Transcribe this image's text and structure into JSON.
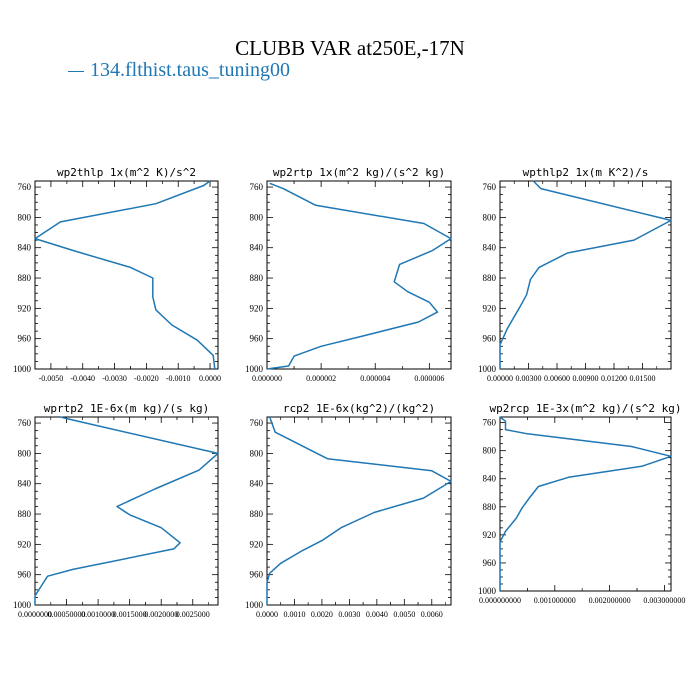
{
  "figure": {
    "title": "CLUBB VAR at250E,-17N",
    "legend": [
      {
        "label": "134.flthist.taus_tuning00",
        "color": "#1f77b4"
      }
    ]
  },
  "chart_data": [
    {
      "type": "line",
      "title": "wp2thlp  1x(m^2 K)/s^2",
      "xlim": [
        -0.0055,
        0.00025
      ],
      "ylim": [
        1000,
        752
      ],
      "yticks": [
        760,
        800,
        840,
        880,
        920,
        960,
        1000
      ],
      "xticks": [
        -0.005,
        -0.004,
        -0.003,
        -0.002,
        -0.001,
        0.0
      ],
      "xtick_labels": [
        "-0.0050",
        "-0.0040",
        "-0.0030",
        "-0.0020",
        "-0.0010",
        "0.0000"
      ],
      "series": [
        {
          "name": "134.flthist.taus_tuning00",
          "color": "#1f77b4",
          "x": [
            0.0,
            -0.0002,
            -0.0017,
            -0.0047,
            -0.0055,
            -0.0042,
            -0.0025,
            -0.0018,
            -0.0018,
            -0.0018,
            -0.0017,
            -0.0012,
            -0.0004,
            0.0001,
            0.00015
          ],
          "y": [
            752,
            758,
            782,
            806,
            828,
            845,
            866,
            880,
            892,
            905,
            922,
            942,
            962,
            982,
            1000
          ]
        }
      ]
    },
    {
      "type": "line",
      "title": "wp2rtp  1x(m^2 kg)/(s^2 kg)",
      "xlim": [
        0.0,
        6.8e-06
      ],
      "ylim": [
        1000,
        752
      ],
      "yticks": [
        760,
        800,
        840,
        880,
        920,
        960,
        1000
      ],
      "xticks": [
        0.0,
        2e-06,
        4e-06,
        6e-06
      ],
      "xtick_labels": [
        "0.000000",
        "0.000002",
        "0.000004",
        "0.000006"
      ],
      "series": [
        {
          "name": "134.flthist.taus_tuning00",
          "color": "#1f77b4",
          "x": [
            1e-07,
            6e-07,
            1.8e-06,
            5.8e-06,
            6.8e-06,
            6.1e-06,
            4.9e-06,
            4.7e-06,
            5.2e-06,
            6e-06,
            6.3e-06,
            5.6e-06,
            3.6e-06,
            2e-06,
            1e-06,
            8e-07,
            0.0
          ],
          "y": [
            755,
            762,
            784,
            808,
            828,
            844,
            862,
            885,
            898,
            912,
            925,
            938,
            956,
            970,
            983,
            996,
            1000
          ]
        }
      ]
    },
    {
      "type": "line",
      "title": "wpthlp2  1x(m K^2)/s",
      "xlim": [
        0.0,
        0.018
      ],
      "ylim": [
        1000,
        752
      ],
      "yticks": [
        760,
        800,
        840,
        880,
        920,
        960,
        1000
      ],
      "xticks": [
        0.0,
        0.003,
        0.006,
        0.009,
        0.012,
        0.015
      ],
      "xtick_labels": [
        "0.00000",
        "0.00300",
        "0.00600",
        "0.00900",
        "0.01200",
        "0.01500"
      ],
      "series": [
        {
          "name": "134.flthist.taus_tuning00",
          "color": "#1f77b4",
          "x": [
            0.0035,
            0.0043,
            0.018,
            0.0141,
            0.0071,
            0.0041,
            0.0032,
            0.0028,
            0.0021,
            0.0008,
            0.0,
            0.0
          ],
          "y": [
            752,
            762,
            804,
            830,
            847,
            866,
            882,
            902,
            918,
            946,
            968,
            1000
          ]
        }
      ]
    },
    {
      "type": "line",
      "title": "wprtp2  1E-6x(m kg)/(s kg)",
      "xlim": [
        0.0,
        0.0029
      ],
      "ylim": [
        1000,
        752
      ],
      "yticks": [
        760,
        800,
        840,
        880,
        920,
        960,
        1000
      ],
      "xticks": [
        0.0,
        0.0005,
        0.001,
        0.0015,
        0.002,
        0.0025
      ],
      "xtick_labels": [
        "0.0000000",
        "0.00050000",
        "0.0010000",
        "0.0015000",
        "0.0020000",
        "0.0025000"
      ],
      "series": [
        {
          "name": "134.flthist.taus_tuning00",
          "color": "#1f77b4",
          "x": [
            0.0004,
            0.0007,
            0.0029,
            0.0026,
            0.0019,
            0.0013,
            0.0015,
            0.002,
            0.0023,
            0.0022,
            0.0006,
            0.0002,
            0.0001,
            0.0,
            0.0
          ],
          "y": [
            752,
            758,
            800,
            822,
            847,
            870,
            881,
            898,
            918,
            926,
            953,
            962,
            975,
            988,
            1000
          ]
        }
      ]
    },
    {
      "type": "line",
      "title": "rcp2  1E-6x(kg^2)/(kg^2)",
      "xlim": [
        0.0,
        0.0067
      ],
      "ylim": [
        1000,
        752
      ],
      "yticks": [
        760,
        800,
        840,
        880,
        920,
        960,
        1000
      ],
      "xticks": [
        0.0,
        0.001,
        0.002,
        0.003,
        0.004,
        0.005,
        0.006
      ],
      "xtick_labels": [
        "0.0000",
        "0.0010",
        "0.0020",
        "0.0030",
        "0.0040",
        "0.0050",
        "0.0060"
      ],
      "series": [
        {
          "name": "134.flthist.taus_tuning00",
          "color": "#1f77b4",
          "x": [
            0.0001,
            0.0003,
            0.0022,
            0.006,
            0.0067,
            0.0057,
            0.0039,
            0.0027,
            0.002,
            0.0013,
            0.0005,
            0.0001,
            0.0,
            0.0
          ],
          "y": [
            752,
            772,
            807,
            823,
            837,
            859,
            878,
            898,
            915,
            928,
            945,
            958,
            970,
            1000
          ]
        }
      ]
    },
    {
      "type": "line",
      "title": "wp2rcp  1E-3x(m^2 kg)/(s^2 kg)",
      "xlim": [
        0.0,
        0.00312
      ],
      "ylim": [
        1000,
        752
      ],
      "yticks": [
        760,
        800,
        840,
        880,
        920,
        960,
        1000
      ],
      "xticks": [
        0.0,
        0.001,
        0.002,
        0.003
      ],
      "xtick_labels": [
        "0.000000000",
        "0.001000000",
        "0.002000000",
        "0.003000000"
      ],
      "series": [
        {
          "name": "134.flthist.taus_tuning00",
          "color": "#1f77b4",
          "x": [
            0.0,
            0.0001,
            0.0001,
            0.0005,
            0.0024,
            0.00312,
            0.0026,
            0.00125,
            0.0007,
            0.00055,
            0.0004,
            0.0003,
            0.0001,
            0.0,
            0.0
          ],
          "y": [
            752,
            758,
            770,
            776,
            794,
            808,
            822,
            838,
            851,
            866,
            882,
            896,
            915,
            930,
            1000
          ]
        }
      ]
    }
  ]
}
